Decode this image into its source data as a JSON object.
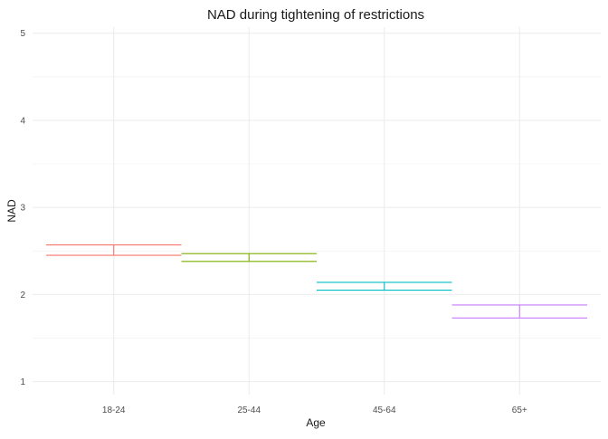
{
  "chart_data": {
    "type": "errorbar",
    "title": "NAD during tightening of restrictions",
    "xlabel": "Age",
    "ylabel": "NAD",
    "categories": [
      "18-24",
      "25-44",
      "45-64",
      "65+"
    ],
    "y_ticks": [
      "1",
      "2",
      "3",
      "4",
      "5"
    ],
    "ylim": [
      0.85,
      5.07
    ],
    "grid": true,
    "legend": "none",
    "series": [
      {
        "category": "18-24",
        "lower": 2.45,
        "upper": 2.57,
        "color": "#F8766D"
      },
      {
        "category": "25-44",
        "lower": 2.38,
        "upper": 2.47,
        "color": "#7CAE00"
      },
      {
        "category": "45-64",
        "lower": 2.05,
        "upper": 2.14,
        "color": "#00BFC4"
      },
      {
        "category": "65+",
        "lower": 1.73,
        "upper": 1.88,
        "color": "#C77CFF"
      }
    ]
  }
}
